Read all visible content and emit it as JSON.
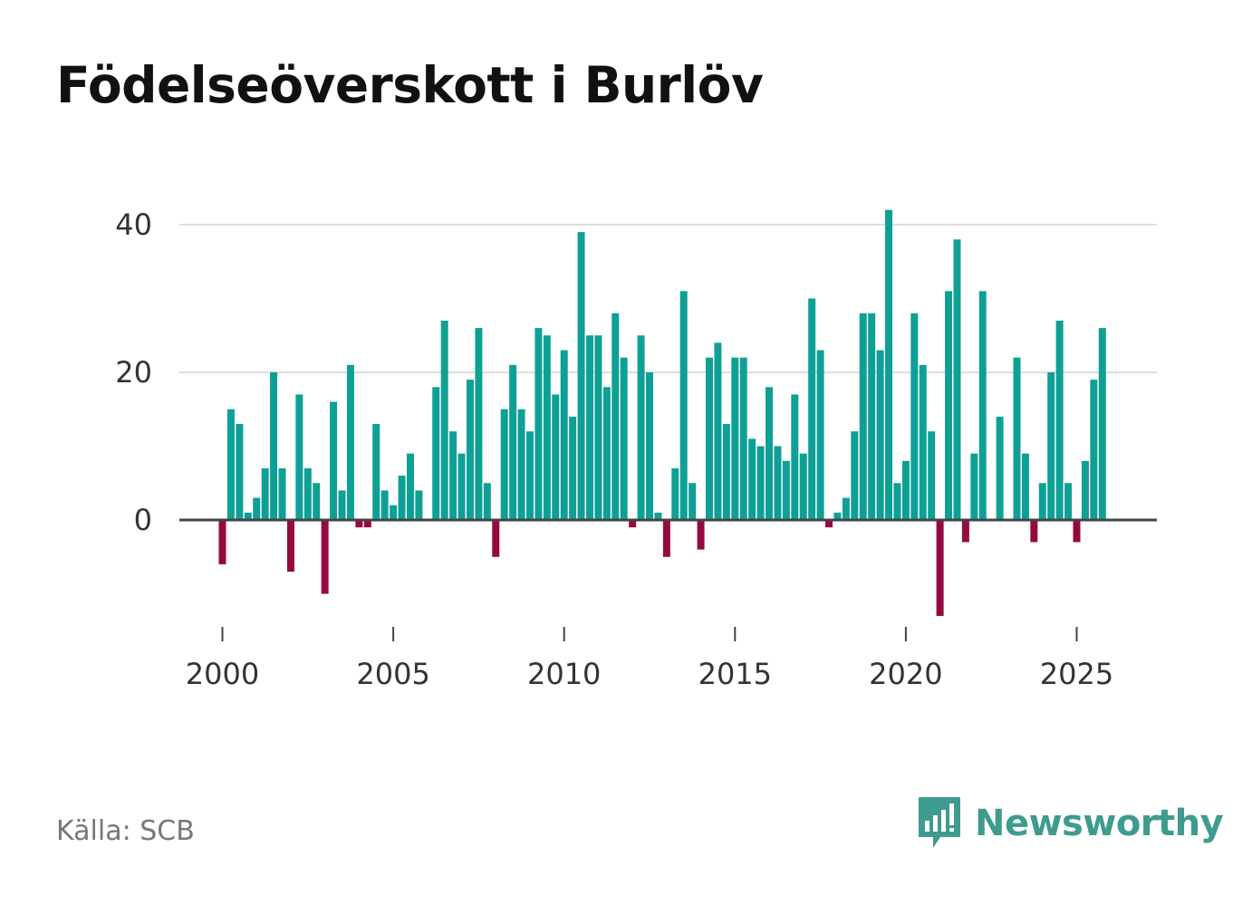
{
  "header": {
    "title": "Födelseöverskott i Burlöv"
  },
  "footer": {
    "source": "Källa: SCB",
    "brand": "Newsworthy"
  },
  "colors": {
    "positive": "#0fa095",
    "negative": "#950a3e",
    "grid": "#dddddd",
    "axis": "#444444",
    "brand": "#3f9b8f"
  },
  "chart_data": {
    "type": "bar",
    "title": "Födelseöverskott i Burlöv",
    "xlabel": "",
    "ylabel": "",
    "ylim": [
      -13,
      42
    ],
    "xlim": [
      1999.5,
      2027.3
    ],
    "y_ticks": [
      0,
      20,
      40
    ],
    "x_ticks": [
      2000,
      2005,
      2010,
      2015,
      2020,
      2025
    ],
    "grid": true,
    "frequency": "quarterly",
    "x": [
      2000.0,
      2000.25,
      2000.5,
      2000.75,
      2001.0,
      2001.25,
      2001.5,
      2001.75,
      2002.0,
      2002.25,
      2002.5,
      2002.75,
      2003.0,
      2003.25,
      2003.5,
      2003.75,
      2004.0,
      2004.25,
      2004.5,
      2004.75,
      2005.0,
      2005.25,
      2005.5,
      2005.75,
      2006.0,
      2006.25,
      2006.5,
      2006.75,
      2007.0,
      2007.25,
      2007.5,
      2007.75,
      2008.0,
      2008.25,
      2008.5,
      2008.75,
      2009.0,
      2009.25,
      2009.5,
      2009.75,
      2010.0,
      2010.25,
      2010.5,
      2010.75,
      2011.0,
      2011.25,
      2011.5,
      2011.75,
      2012.0,
      2012.25,
      2012.5,
      2012.75,
      2013.0,
      2013.25,
      2013.5,
      2013.75,
      2014.0,
      2014.25,
      2014.5,
      2014.75,
      2015.0,
      2015.25,
      2015.5,
      2015.75,
      2016.0,
      2016.25,
      2016.5,
      2016.75,
      2017.0,
      2017.25,
      2017.5,
      2017.75,
      2018.0,
      2018.25,
      2018.5,
      2018.75,
      2019.0,
      2019.25,
      2019.5,
      2019.75,
      2020.0,
      2020.25,
      2020.5,
      2020.75,
      2021.0,
      2021.25,
      2021.5,
      2021.75,
      2022.0,
      2022.25,
      2022.5,
      2022.75,
      2023.0,
      2023.25,
      2023.5,
      2023.75,
      2024.0,
      2024.25,
      2024.5,
      2024.75,
      2025.0,
      2025.25,
      2025.5,
      2025.75
    ],
    "values": [
      -6,
      15,
      13,
      1,
      3,
      7,
      20,
      7,
      -7,
      17,
      7,
      5,
      -10,
      16,
      4,
      21,
      -1,
      -1,
      13,
      4,
      2,
      6,
      9,
      4,
      0,
      18,
      27,
      12,
      9,
      19,
      26,
      5,
      -5,
      15,
      21,
      15,
      12,
      26,
      25,
      17,
      23,
      14,
      39,
      25,
      25,
      18,
      28,
      22,
      -1,
      25,
      20,
      1,
      -5,
      7,
      31,
      5,
      -4,
      22,
      24,
      13,
      22,
      22,
      11,
      10,
      18,
      10,
      8,
      17,
      9,
      30,
      23,
      -1,
      1,
      3,
      12,
      28,
      28,
      23,
      42,
      5,
      8,
      28,
      21,
      12,
      -13,
      31,
      38,
      -3,
      9,
      31,
      0,
      14,
      0,
      22,
      9,
      -3,
      5,
      20,
      27,
      5,
      -3,
      8,
      19,
      26
    ]
  }
}
